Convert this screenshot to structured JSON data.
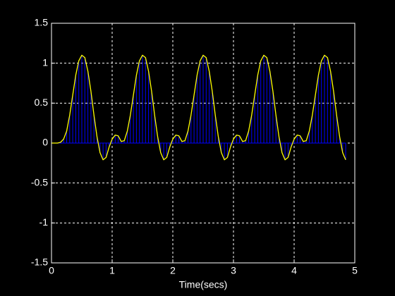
{
  "chart_data": {
    "type": "stem",
    "xlabel": "Time(secs)",
    "x": [
      0,
      0.05,
      0.1,
      0.15,
      0.2,
      0.25,
      0.3,
      0.35,
      0.4,
      0.45,
      0.5,
      0.55,
      0.6,
      0.65,
      0.7,
      0.75,
      0.8,
      0.85,
      0.9,
      0.95,
      1,
      1.05,
      1.1,
      1.15,
      1.2,
      1.25,
      1.3,
      1.35,
      1.4,
      1.45,
      1.5,
      1.55,
      1.6,
      1.65,
      1.7,
      1.75,
      1.8,
      1.85,
      1.9,
      1.95,
      2,
      2.05,
      2.1,
      2.15,
      2.2,
      2.25,
      2.3,
      2.35,
      2.4,
      2.45,
      2.5,
      2.55,
      2.6,
      2.65,
      2.7,
      2.75,
      2.8,
      2.85,
      2.9,
      2.95,
      3,
      3.05,
      3.1,
      3.15,
      3.2,
      3.25,
      3.3,
      3.35,
      3.4,
      3.45,
      3.5,
      3.55,
      3.6,
      3.65,
      3.7,
      3.75,
      3.8,
      3.85,
      3.9,
      3.95,
      4,
      4.05,
      4.1,
      4.15,
      4.2,
      4.25,
      4.3,
      4.35,
      4.4,
      4.45,
      4.5,
      4.55,
      4.6,
      4.65,
      4.7,
      4.75,
      4.8,
      4.85
    ],
    "values": [
      0,
      0,
      0,
      0.01,
      0.05,
      0.15,
      0.35,
      0.6,
      0.85,
      1.03,
      1.1,
      1.07,
      0.9,
      0.65,
      0.35,
      0.08,
      -0.12,
      -0.21,
      -0.18,
      -0.05,
      0.05,
      0.1,
      0.09,
      0.02,
      0.03,
      0.15,
      0.35,
      0.6,
      0.85,
      1.03,
      1.1,
      1.07,
      0.9,
      0.65,
      0.35,
      0.08,
      -0.12,
      -0.21,
      -0.18,
      -0.05,
      0.05,
      0.1,
      0.09,
      0.02,
      0.03,
      0.15,
      0.35,
      0.6,
      0.85,
      1.03,
      1.1,
      1.07,
      0.9,
      0.65,
      0.35,
      0.08,
      -0.12,
      -0.21,
      -0.18,
      -0.05,
      0.05,
      0.1,
      0.09,
      0.02,
      0.03,
      0.15,
      0.35,
      0.6,
      0.85,
      1.03,
      1.1,
      1.07,
      0.9,
      0.65,
      0.35,
      0.08,
      -0.12,
      -0.21,
      -0.18,
      -0.05,
      0.05,
      0.1,
      0.09,
      0.02,
      0.03,
      0.15,
      0.35,
      0.6,
      0.85,
      1.03,
      1.1,
      1.07,
      0.9,
      0.65,
      0.35,
      0.08,
      -0.12,
      -0.21
    ],
    "line_color": "#ffff00",
    "stem_color": "#0000ff",
    "xlim": [
      0,
      5
    ],
    "xticks": [
      0,
      1,
      2,
      3,
      4,
      5
    ],
    "ylim": [
      -1.5,
      1.5
    ],
    "yticks": [
      -1.5,
      -1,
      -0.5,
      0,
      0.5,
      1,
      1.5
    ],
    "grid": true
  }
}
